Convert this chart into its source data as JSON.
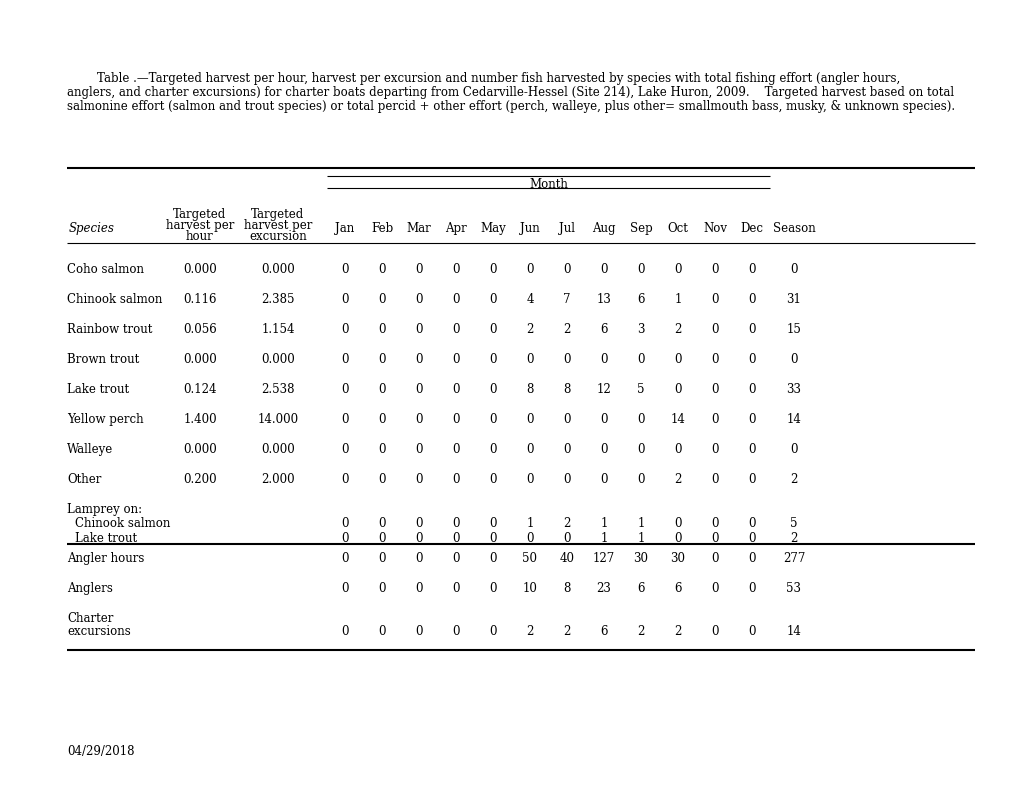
{
  "caption_line1": "        Table .—Targeted harvest per hour, harvest per excursion and number fish harvested by species with total fishing effort (angler hours,",
  "caption_line2": "anglers, and charter excursions) for charter boats departing from Cedarville-Hessel (Site 214), Lake Huron, 2009.    Targeted harvest based on total",
  "caption_line3": "salmonine effort (salmon and trout species) or total percid + other effort (perch, walleye, plus other= smallmouth bass, musky, & unknown species).",
  "date_label": "04/29/2018",
  "months": [
    "Jan",
    "Feb",
    "Mar",
    "Apr",
    "May",
    "Jun",
    "Jul",
    "Aug",
    "Sep",
    "Oct",
    "Nov",
    "Dec"
  ],
  "rows": [
    {
      "species": "Coho salmon",
      "tph": "0.000",
      "tpe": "0.000",
      "months": [
        0,
        0,
        0,
        0,
        0,
        0,
        0,
        0,
        0,
        0,
        0,
        0
      ],
      "season": "0",
      "type": "normal"
    },
    {
      "species": "Chinook salmon",
      "tph": "0.116",
      "tpe": "2.385",
      "months": [
        0,
        0,
        0,
        0,
        0,
        4,
        7,
        13,
        6,
        1,
        0,
        0
      ],
      "season": "31",
      "type": "normal"
    },
    {
      "species": "Rainbow trout",
      "tph": "0.056",
      "tpe": "1.154",
      "months": [
        0,
        0,
        0,
        0,
        0,
        2,
        2,
        6,
        3,
        2,
        0,
        0
      ],
      "season": "15",
      "type": "normal"
    },
    {
      "species": "Brown trout",
      "tph": "0.000",
      "tpe": "0.000",
      "months": [
        0,
        0,
        0,
        0,
        0,
        0,
        0,
        0,
        0,
        0,
        0,
        0
      ],
      "season": "0",
      "type": "normal"
    },
    {
      "species": "Lake trout",
      "tph": "0.124",
      "tpe": "2.538",
      "months": [
        0,
        0,
        0,
        0,
        0,
        8,
        8,
        12,
        5,
        0,
        0,
        0
      ],
      "season": "33",
      "type": "normal"
    },
    {
      "species": "Yellow perch",
      "tph": "1.400",
      "tpe": "14.000",
      "months": [
        0,
        0,
        0,
        0,
        0,
        0,
        0,
        0,
        0,
        14,
        0,
        0
      ],
      "season": "14",
      "type": "normal"
    },
    {
      "species": "Walleye",
      "tph": "0.000",
      "tpe": "0.000",
      "months": [
        0,
        0,
        0,
        0,
        0,
        0,
        0,
        0,
        0,
        0,
        0,
        0
      ],
      "season": "0",
      "type": "normal"
    },
    {
      "species": "Other",
      "tph": "0.200",
      "tpe": "2.000",
      "months": [
        0,
        0,
        0,
        0,
        0,
        0,
        0,
        0,
        0,
        2,
        0,
        0
      ],
      "season": "2",
      "type": "normal"
    },
    {
      "species": "Lamprey on:",
      "tph": null,
      "tpe": null,
      "months": null,
      "season": null,
      "type": "lamprey_header"
    },
    {
      "species": "  Chinook salmon",
      "tph": null,
      "tpe": null,
      "months": [
        0,
        0,
        0,
        0,
        0,
        1,
        2,
        1,
        1,
        0,
        0,
        0
      ],
      "season": "5",
      "type": "lamprey_sub"
    },
    {
      "species": "  Lake trout",
      "tph": null,
      "tpe": null,
      "months": [
        0,
        0,
        0,
        0,
        0,
        0,
        0,
        1,
        1,
        0,
        0,
        0
      ],
      "season": "2",
      "type": "lamprey_sub_last"
    },
    {
      "species": "Angler hours",
      "tph": null,
      "tpe": null,
      "months": [
        0,
        0,
        0,
        0,
        0,
        50,
        40,
        127,
        30,
        30,
        0,
        0
      ],
      "season": "277",
      "type": "effort"
    },
    {
      "species": "Anglers",
      "tph": null,
      "tpe": null,
      "months": [
        0,
        0,
        0,
        0,
        0,
        10,
        8,
        23,
        6,
        6,
        0,
        0
      ],
      "season": "53",
      "type": "effort"
    },
    {
      "species": "Charter",
      "tph": null,
      "tpe": null,
      "months": null,
      "season": null,
      "type": "charter_header"
    },
    {
      "species": "excursions",
      "tph": null,
      "tpe": null,
      "months": [
        0,
        0,
        0,
        0,
        0,
        2,
        2,
        6,
        2,
        2,
        0,
        0
      ],
      "season": "14",
      "type": "charter_data"
    }
  ],
  "figure_bg": "#ffffff",
  "text_color": "#000000",
  "font_size": 8.5,
  "caption_font_size": 8.5
}
